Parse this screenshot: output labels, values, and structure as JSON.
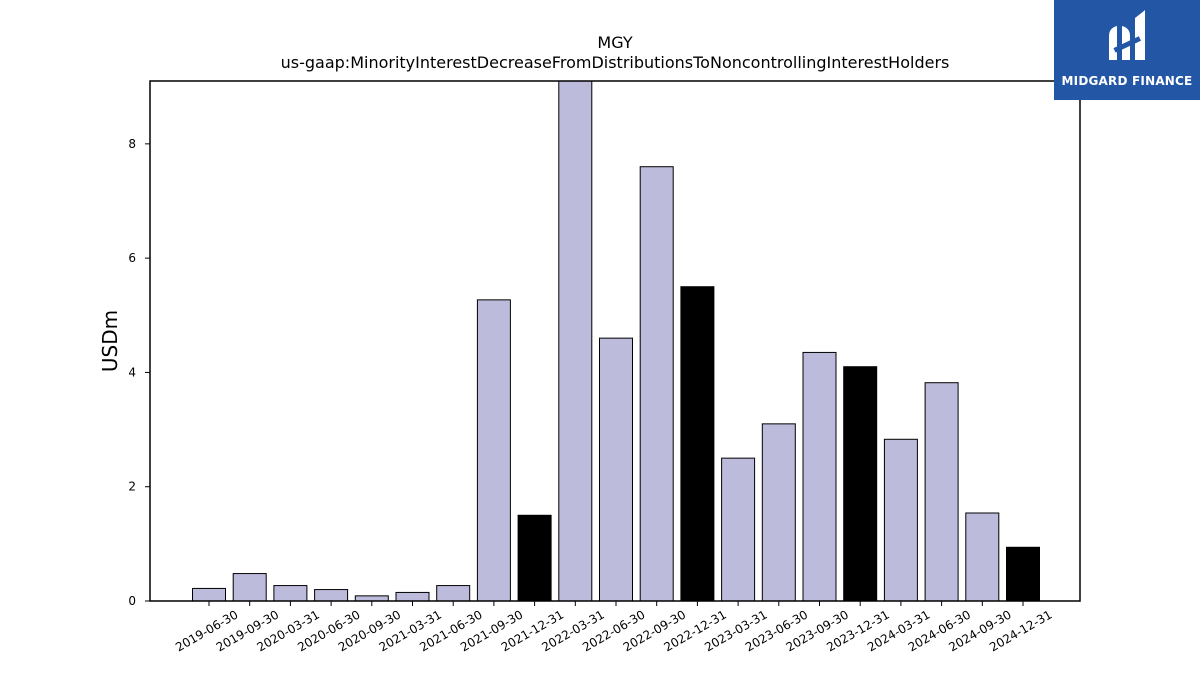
{
  "logo": {
    "text": "MIDGARD FINANCE",
    "background": "#2456a6"
  },
  "chart_data": {
    "type": "bar",
    "title": "MGY",
    "subtitle": "us-gaap:MinorityInterestDecreaseFromDistributionsToNoncontrollingInterestHolders",
    "ylabel": "USDm",
    "xlabel": "",
    "ylim": [
      0,
      9.1
    ],
    "yticks": [
      0,
      2,
      4,
      6,
      8
    ],
    "categories": [
      "2019-06-30",
      "2019-09-30",
      "2020-03-31",
      "2020-06-30",
      "2020-09-30",
      "2021-03-31",
      "2021-06-30",
      "2021-09-30",
      "2021-12-31",
      "2022-03-31",
      "2022-06-30",
      "2022-09-30",
      "2022-12-31",
      "2023-03-31",
      "2023-06-30",
      "2023-09-30",
      "2023-12-31",
      "2024-03-31",
      "2024-06-30",
      "2024-09-30",
      "2024-12-31"
    ],
    "values": [
      0.22,
      0.48,
      0.27,
      0.2,
      0.09,
      0.15,
      0.27,
      5.27,
      1.5,
      9.1,
      4.6,
      7.6,
      5.5,
      2.5,
      3.1,
      4.35,
      4.1,
      2.83,
      3.82,
      1.54,
      0.94
    ],
    "highlight": [
      false,
      false,
      false,
      false,
      false,
      false,
      false,
      false,
      true,
      false,
      false,
      false,
      true,
      false,
      false,
      false,
      true,
      false,
      false,
      false,
      true
    ],
    "colors": {
      "bar": "#bdbbdb",
      "highlight": "#000000",
      "edge": "#000000"
    },
    "grid": false,
    "legend": "none"
  }
}
